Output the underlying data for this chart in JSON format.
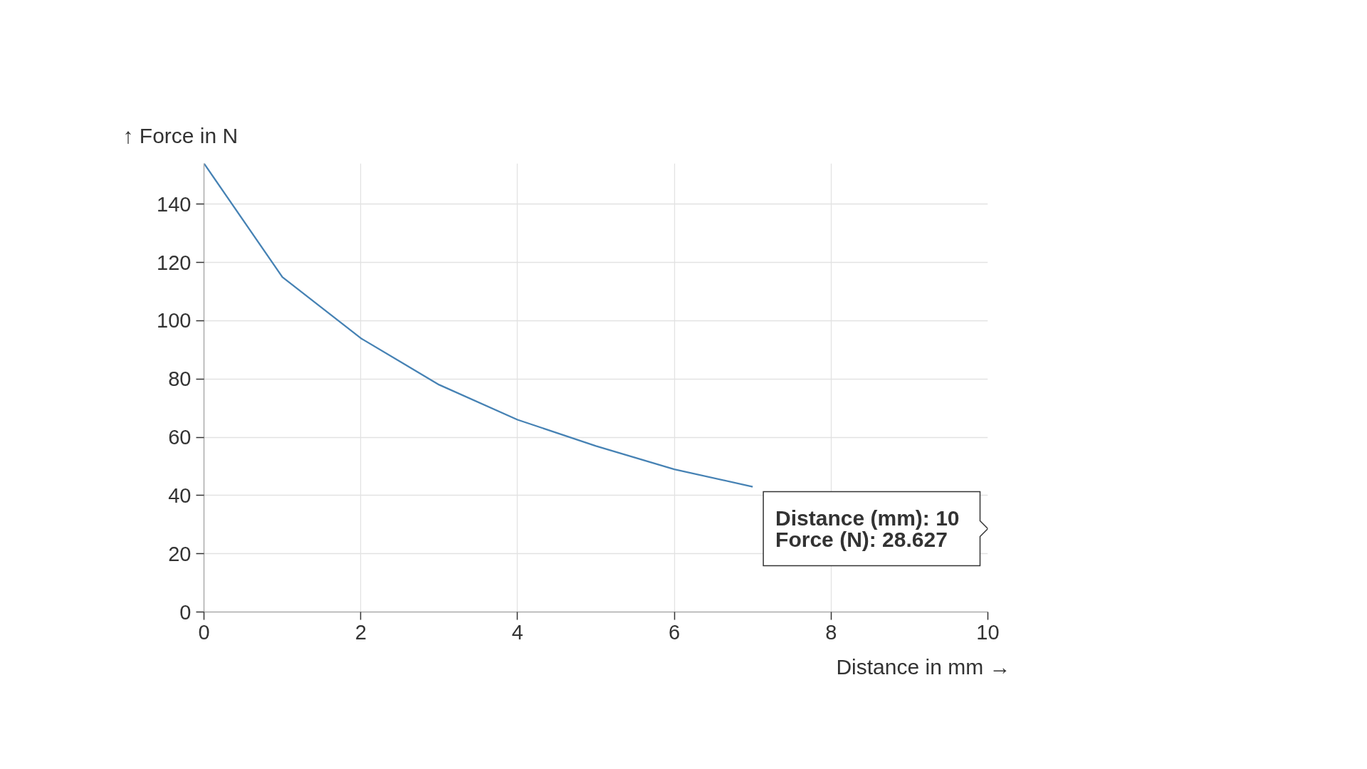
{
  "chart_data": {
    "type": "line",
    "xlabel": "Distance in mm →",
    "ylabel": "↑ Force in N",
    "x": [
      0,
      1,
      2,
      3,
      4,
      5,
      6,
      7
    ],
    "series": [
      {
        "color": "#4682b4",
        "values": [
          154,
          115,
          94,
          78,
          66,
          57,
          49,
          43
        ]
      }
    ],
    "xlim": [
      0,
      10
    ],
    "ylim": [
      0,
      154
    ],
    "xticks": [
      0,
      2,
      4,
      6,
      8,
      10
    ],
    "yticks": [
      0,
      20,
      40,
      60,
      80,
      100,
      120,
      140
    ],
    "grid": true,
    "annotations": [
      "Distance (mm): 10\nForce (N): 28.627"
    ]
  }
}
